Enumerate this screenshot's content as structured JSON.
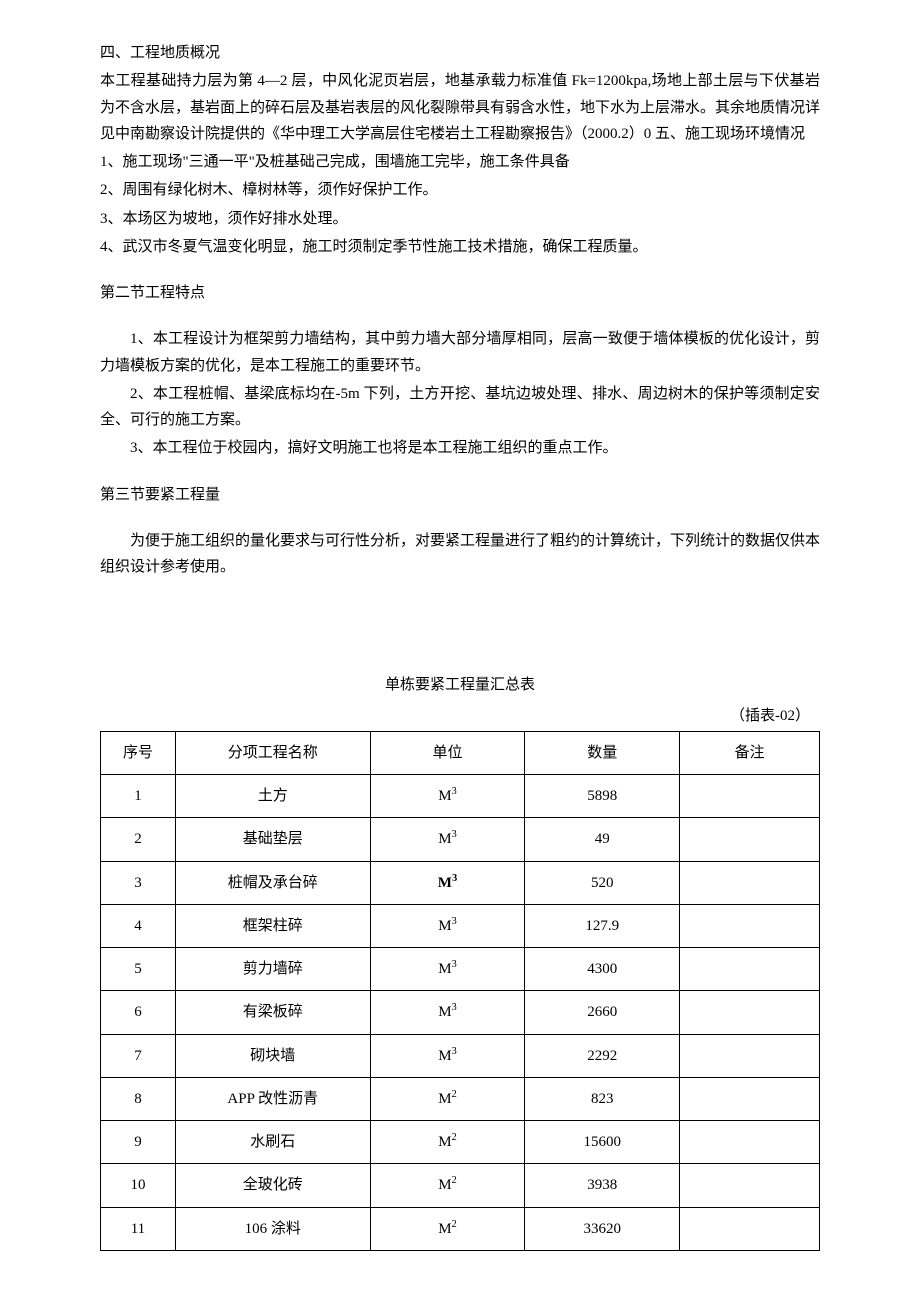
{
  "section4": {
    "heading": "四、工程地质概况",
    "body": "本工程基础持力层为第 4—2 层，中风化泥页岩层，地基承载力标准值 Fk=1200kpa,场地上部土层与下伏基岩为不含水层，基岩面上的碎石层及基岩表层的风化裂隙带具有弱含水性，地下水为上层滞水。其余地质情况详见中南勘察设计院提供的《华中理工大学高层住宅楼岩土工程勘察报告》（2000.2）0 五、施工现场环境情况",
    "items": [
      "1、施工现场\"三通一平\"及桩基础己完成，围墙施工完毕，施工条件具备",
      "2、周围有绿化树木、樟树林等，须作好保护工作。",
      "3、本场区为坡地，须作好排水处理。",
      "4、武汉市冬夏气温变化明显，施工时须制定季节性施工技术措施，确保工程质量。"
    ]
  },
  "sectionB": {
    "heading": "第二节工程特点",
    "items": [
      "1、本工程设计为框架剪力墙结构，其中剪力墙大部分墙厚相同，层高一致便于墙体模板的优化设计，剪力墙模板方案的优化，是本工程施工的重要环节。",
      "2、本工程桩帽、基梁底标均在-5m 下列，土方开挖、基坑边坡处理、排水、周边树木的保护等须制定安全、可行的施工方案。",
      "3、本工程位于校园内，搞好文明施工也将是本工程施工组织的重点工作。"
    ]
  },
  "sectionC": {
    "heading": "第三节要紧工程量",
    "body": "为便于施工组织的量化要求与可行性分析，对要紧工程量进行了粗约的计算统计，下列统计的数据仅供本组织设计参考使用。"
  },
  "table": {
    "title": "单栋要紧工程量汇总表",
    "label": "（插表-02）",
    "headers": [
      "序号",
      "分项工程名称",
      "单位",
      "数量",
      "备注"
    ],
    "rows": [
      {
        "seq": "1",
        "name": "土方",
        "unit": "M",
        "exp": "3",
        "bold": false,
        "qty": "5898",
        "remark": ""
      },
      {
        "seq": "2",
        "name": "基础垫层",
        "unit": "M",
        "exp": "3",
        "bold": false,
        "qty": "49",
        "remark": ""
      },
      {
        "seq": "3",
        "name": "桩帽及承台碎",
        "unit": "M",
        "exp": "3",
        "bold": true,
        "qty": "520",
        "remark": ""
      },
      {
        "seq": "4",
        "name": "框架柱碎",
        "unit": "M",
        "exp": "3",
        "bold": false,
        "qty": "127.9",
        "remark": ""
      },
      {
        "seq": "5",
        "name": "剪力墙碎",
        "unit": "M",
        "exp": "3",
        "bold": false,
        "qty": "4300",
        "remark": ""
      },
      {
        "seq": "6",
        "name": "有梁板碎",
        "unit": "M",
        "exp": "3",
        "bold": false,
        "qty": "2660",
        "remark": ""
      },
      {
        "seq": "7",
        "name": "砌块墙",
        "unit": "M",
        "exp": "3",
        "bold": false,
        "qty": "2292",
        "remark": ""
      },
      {
        "seq": "8",
        "name": "APP 改性沥青",
        "unit": "M",
        "exp": "2",
        "bold": false,
        "qty": "823",
        "remark": ""
      },
      {
        "seq": "9",
        "name": "水刷石",
        "unit": "M",
        "exp": "2",
        "bold": false,
        "qty": "15600",
        "remark": ""
      },
      {
        "seq": "10",
        "name": "全玻化砖",
        "unit": "M",
        "exp": "2",
        "bold": false,
        "qty": "3938",
        "remark": ""
      },
      {
        "seq": "11",
        "name": "106 涂料",
        "unit": "M",
        "exp": "2",
        "bold": false,
        "qty": "33620",
        "remark": ""
      }
    ]
  }
}
